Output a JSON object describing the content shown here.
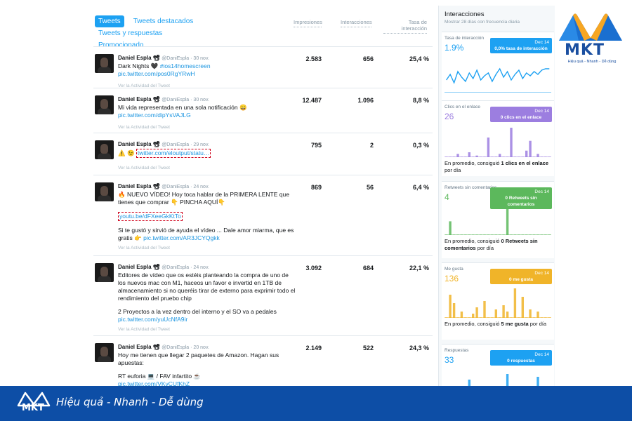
{
  "tabs": [
    "Tweets",
    "Tweets destacados",
    "Tweets y respuestas",
    "Promocionado"
  ],
  "columns": {
    "impressions": "Impresiones",
    "interactions": "Interacciones",
    "rate": "Tasa de interacción"
  },
  "activity_label": "Ver la Actividad del Tweet",
  "tweets": [
    {
      "name": "Daniel Espla 📽",
      "handle": "@DaniEspla · 30 nov.",
      "text": "Dark Nights 🖤 ",
      "hashtag": "#ios14homescreen",
      "link": "pic.twitter.com/pos0RgYRwH",
      "impressions": "2.583",
      "interactions": "656",
      "rate": "25,4 %"
    },
    {
      "name": "Daniel Espla 📽",
      "handle": "@DaniEspla · 30 nov.",
      "text": "Mi vida representada en una sola notificación 😄",
      "link": "pic.twitter.com/dipYsVAJLG",
      "impressions": "12.487",
      "interactions": "1.096",
      "rate": "8,8 %"
    },
    {
      "name": "Daniel Espla 📽",
      "handle": "@DaniEspla · 29 nov.",
      "text": "⚠️ 😉 ",
      "link": "twitter.com/eloutput/statu…",
      "impressions": "795",
      "interactions": "2",
      "rate": "0,3 %"
    },
    {
      "name": "Daniel Espla 📽",
      "handle": "@DaniEspla · 24 nov.",
      "text": "🔥 NUEVO VÍDEO! Hoy toca hablar de la PRIMERA LENTE que tienes que comprar 👇 PINCHA AQUÍ👇",
      "link": "youtu.be/dFXeeGkKtTo",
      "text2": "Si te gustó y sirvió de ayuda el vídeo ... Dale amor miarma, que es gratis 👉 ",
      "link2": "pic.twitter.com/AR3JCYQgkk",
      "impressions": "869",
      "interactions": "56",
      "rate": "6,4 %"
    },
    {
      "name": "Daniel Espla 📽",
      "handle": "@DaniEspla · 24 nov.",
      "text": "Editores de vídeo que os estéis planteando la compra de uno de los nuevos mac con M1, haceos un favor e invertid en 1TB de almacenamiento si no queréis tirar de externo para exprimir todo el rendimiento del pruebo chip",
      "text2": "2 Proyectos a la vez dentro del interno y el SO va a pedales ",
      "link2": "pic.twitter.com/yuUcNfA9ir",
      "impressions": "3.092",
      "interactions": "684",
      "rate": "22,1 %"
    },
    {
      "name": "Daniel Espla 📽",
      "handle": "@DaniEspla · 20 nov.",
      "text": "Hoy me tienen que llegar 2 paquetes de Amazon. Hagan sus apuestas:",
      "text2": "RT euforia 💻 / FAV infartito ☕",
      "link2": "pic.twitter.com/VKvCUfKhZ",
      "impressions": "2.149",
      "interactions": "522",
      "rate": "24,3 %"
    }
  ],
  "panel": {
    "title": "Interacciones",
    "subtitle": "Mostrar 28 días con frecuencia diaria",
    "cards": [
      {
        "label": "Tasa de interacción",
        "value": "1.9%",
        "tip_date": "Dec 14",
        "tip_text": "0,0% tasa de interacción",
        "color": "#1da1f2",
        "kind": "line"
      },
      {
        "label": "Clics en el enlace",
        "value": "26",
        "tip_date": "Dec 14",
        "tip_text": "0 clics en el enlace",
        "color": "#9c7ee0",
        "kind": "bar",
        "foot_pre": "En promedio, consiguió ",
        "foot_bold": "1 clics en el enlace",
        "foot_post": " por día"
      },
      {
        "label": "Retweets sin comentarios",
        "value": "4",
        "tip_date": "Dec 14",
        "tip_text": "0 Retweets sin comentarios",
        "color": "#5cb85c",
        "kind": "bar",
        "foot_pre": "En promedio, consiguió ",
        "foot_bold": "0 Retweets sin comentarios",
        "foot_post": " por día"
      },
      {
        "label": "Me gusta",
        "value": "136",
        "tip_date": "Dec 14",
        "tip_text": "0 me gusta",
        "color": "#f0b429",
        "kind": "bar",
        "foot_pre": "En promedio, consiguió ",
        "foot_bold": "5 me gusta",
        "foot_post": " por día"
      },
      {
        "label": "Respuestas",
        "value": "33",
        "tip_date": "Dec 14",
        "tip_text": "0 respuestas",
        "color": "#1da1f2",
        "kind": "bar"
      }
    ]
  },
  "brand": {
    "logo": "MKT",
    "tagline": "Hiệu quả - Nhanh - Dễ dùng",
    "slogan": "Hiệu quả - Nhanh  - Dễ dùng",
    "color": "#0d4ea6"
  }
}
